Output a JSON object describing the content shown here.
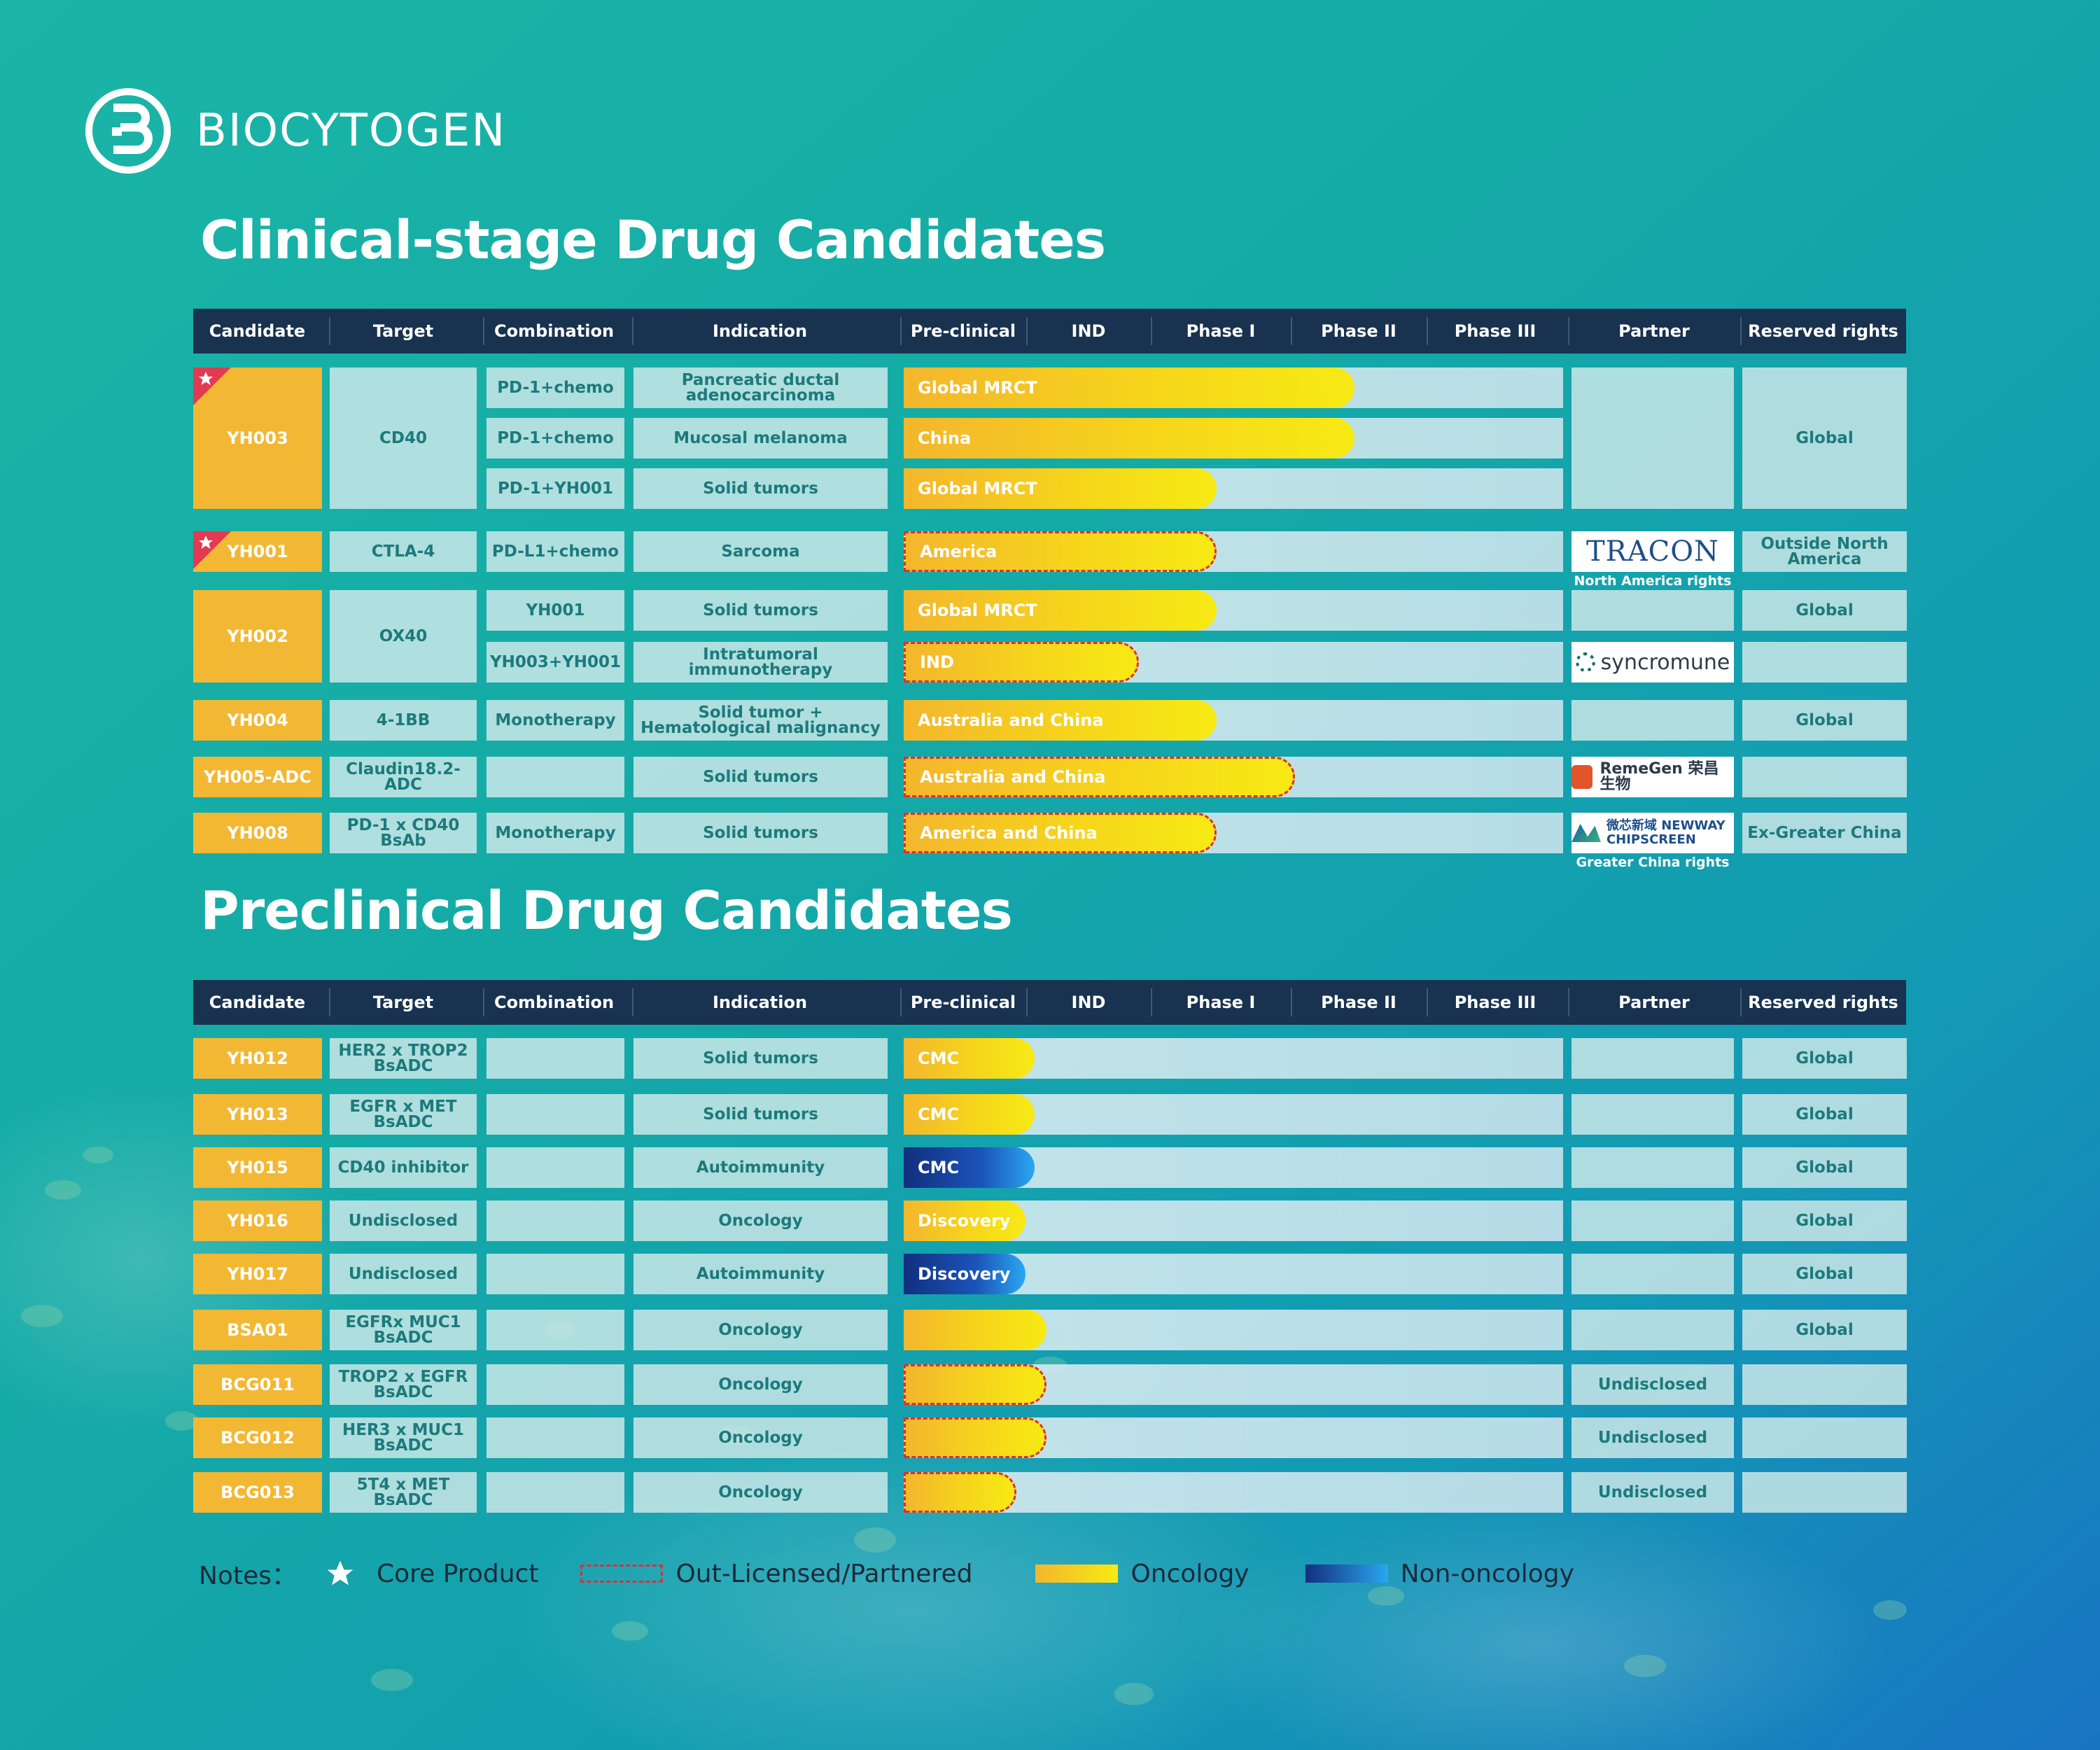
{
  "brand": {
    "name": "BIOCYTOGEN",
    "logo_icon": "biocytogen-logo-icon"
  },
  "colors": {
    "candidate": "#f2b834",
    "header": "#18324f",
    "cell": "#cde8e8",
    "cell_text": "#1c7a7c",
    "oncology_bar": "#f6d51b",
    "non_oncology_bar": "#1b54b9",
    "dashed_border": "#d9303e"
  },
  "headers": [
    "Candidate",
    "Target",
    "Combination",
    "Indication",
    "Pre-clinical",
    "IND",
    "Phase I",
    "Phase II",
    "Phase III",
    "Partner",
    "Reserved rights"
  ],
  "clinical": {
    "title": "Clinical-stage Drug Candidates",
    "rows": [
      {
        "candidate": "YH003",
        "core": true,
        "target": "CD40",
        "combination": "PD-1+chemo",
        "indication": "Pancreatic ductal adenocarcinoma",
        "bar_label": "Global MRCT",
        "stage": "Phase II",
        "category": "oncology",
        "partnered": false,
        "partner": "",
        "rights": "Global"
      },
      {
        "candidate": "YH003",
        "core": true,
        "target": "CD40",
        "combination": "PD-1+chemo",
        "indication": "Mucosal melanoma",
        "bar_label": "China",
        "stage": "Phase II",
        "category": "oncology",
        "partnered": false,
        "partner": "",
        "rights": "Global"
      },
      {
        "candidate": "YH003",
        "core": true,
        "target": "CD40",
        "combination": "PD-1+YH001",
        "indication": "Solid tumors",
        "bar_label": "Global MRCT",
        "stage": "Phase I",
        "category": "oncology",
        "partnered": false,
        "partner": "",
        "rights": "Global"
      },
      {
        "candidate": "YH001",
        "core": true,
        "target": "CTLA-4",
        "combination": "PD-L1+chemo",
        "indication": "Sarcoma",
        "bar_label": "America",
        "stage": "Phase I",
        "category": "oncology",
        "partnered": true,
        "partner": "TRACON",
        "partner_note": "North America rights",
        "rights": "Outside North America"
      },
      {
        "candidate": "YH002",
        "core": false,
        "target": "OX40",
        "combination": "YH001",
        "indication": "Solid tumors",
        "bar_label": "Global MRCT",
        "stage": "Phase I",
        "category": "oncology",
        "partnered": false,
        "partner": "",
        "rights": "Global"
      },
      {
        "candidate": "YH002",
        "core": false,
        "target": "OX40",
        "combination": "YH003+YH001",
        "indication": "Intratumoral immunotherapy",
        "bar_label": "IND",
        "stage": "IND",
        "category": "oncology",
        "partnered": true,
        "partner": "syncromune",
        "rights": ""
      },
      {
        "candidate": "YH004",
        "core": false,
        "target": "4-1BB",
        "combination": "Monotherapy",
        "indication": "Solid tumor + Hematological malignancy",
        "bar_label": "Australia and China",
        "stage": "Phase I",
        "category": "oncology",
        "partnered": false,
        "partner": "",
        "rights": "Global"
      },
      {
        "candidate": "YH005-ADC",
        "core": false,
        "target": "Claudin18.2-ADC",
        "combination": "",
        "indication": "Solid tumors",
        "bar_label": "Australia and China",
        "stage": "Phase I/II",
        "category": "oncology",
        "partnered": true,
        "partner": "RemeGen 荣昌生物",
        "rights": ""
      },
      {
        "candidate": "YH008",
        "core": false,
        "target": "PD-1 x CD40 BsAb",
        "combination": "Monotherapy",
        "indication": "Solid tumors",
        "bar_label": "America and China",
        "stage": "Phase I",
        "category": "oncology",
        "partnered": true,
        "partner": "微芯新域 NEWWAY CHIPSCREEN",
        "partner_note": "Greater China rights",
        "rights": "Ex-Greater China"
      }
    ]
  },
  "preclinical": {
    "title": "Preclinical Drug Candidates",
    "rows": [
      {
        "candidate": "YH012",
        "target": "HER2 x TROP2 BsADC",
        "combination": "",
        "indication": "Solid tumors",
        "bar_label": "CMC",
        "category": "oncology",
        "partnered": false,
        "partner": "",
        "rights": "Global"
      },
      {
        "candidate": "YH013",
        "target": "EGFR x MET BsADC",
        "combination": "",
        "indication": "Solid tumors",
        "bar_label": "CMC",
        "category": "oncology",
        "partnered": false,
        "partner": "",
        "rights": "Global"
      },
      {
        "candidate": "YH015",
        "target": "CD40 inhibitor",
        "combination": "",
        "indication": "Autoimmunity",
        "bar_label": "CMC",
        "category": "non-oncology",
        "partnered": false,
        "partner": "",
        "rights": "Global"
      },
      {
        "candidate": "YH016",
        "target": "Undisclosed",
        "combination": "",
        "indication": "Oncology",
        "bar_label": "Discovery",
        "category": "oncology",
        "partnered": false,
        "partner": "",
        "rights": "Global"
      },
      {
        "candidate": "YH017",
        "target": "Undisclosed",
        "combination": "",
        "indication": "Autoimmunity",
        "bar_label": "Discovery",
        "category": "non-oncology",
        "partnered": false,
        "partner": "",
        "rights": "Global"
      },
      {
        "candidate": "BSA01",
        "target": "EGFRx MUC1 BsADC",
        "combination": "",
        "indication": "Oncology",
        "bar_label": "",
        "category": "oncology",
        "partnered": false,
        "partner": "",
        "rights": "Global"
      },
      {
        "candidate": "BCG011",
        "target": "TROP2 x EGFR BsADC",
        "combination": "",
        "indication": "Oncology",
        "bar_label": "",
        "category": "oncology",
        "partnered": true,
        "partner": "Undisclosed",
        "rights": ""
      },
      {
        "candidate": "BCG012",
        "target": "HER3 x MUC1 BsADC",
        "combination": "",
        "indication": "Oncology",
        "bar_label": "",
        "category": "oncology",
        "partnered": true,
        "partner": "Undisclosed",
        "rights": ""
      },
      {
        "candidate": "BCG013",
        "target": "5T4 x MET BsADC",
        "combination": "",
        "indication": "Oncology",
        "bar_label": "",
        "category": "oncology",
        "partnered": true,
        "partner": "Undisclosed",
        "rights": ""
      }
    ]
  },
  "notes": {
    "label": "Notes：",
    "core": "Core Product",
    "partnered": "Out-Licensed/Partnered",
    "oncology": "Oncology",
    "non_oncology": "Non-oncology"
  }
}
